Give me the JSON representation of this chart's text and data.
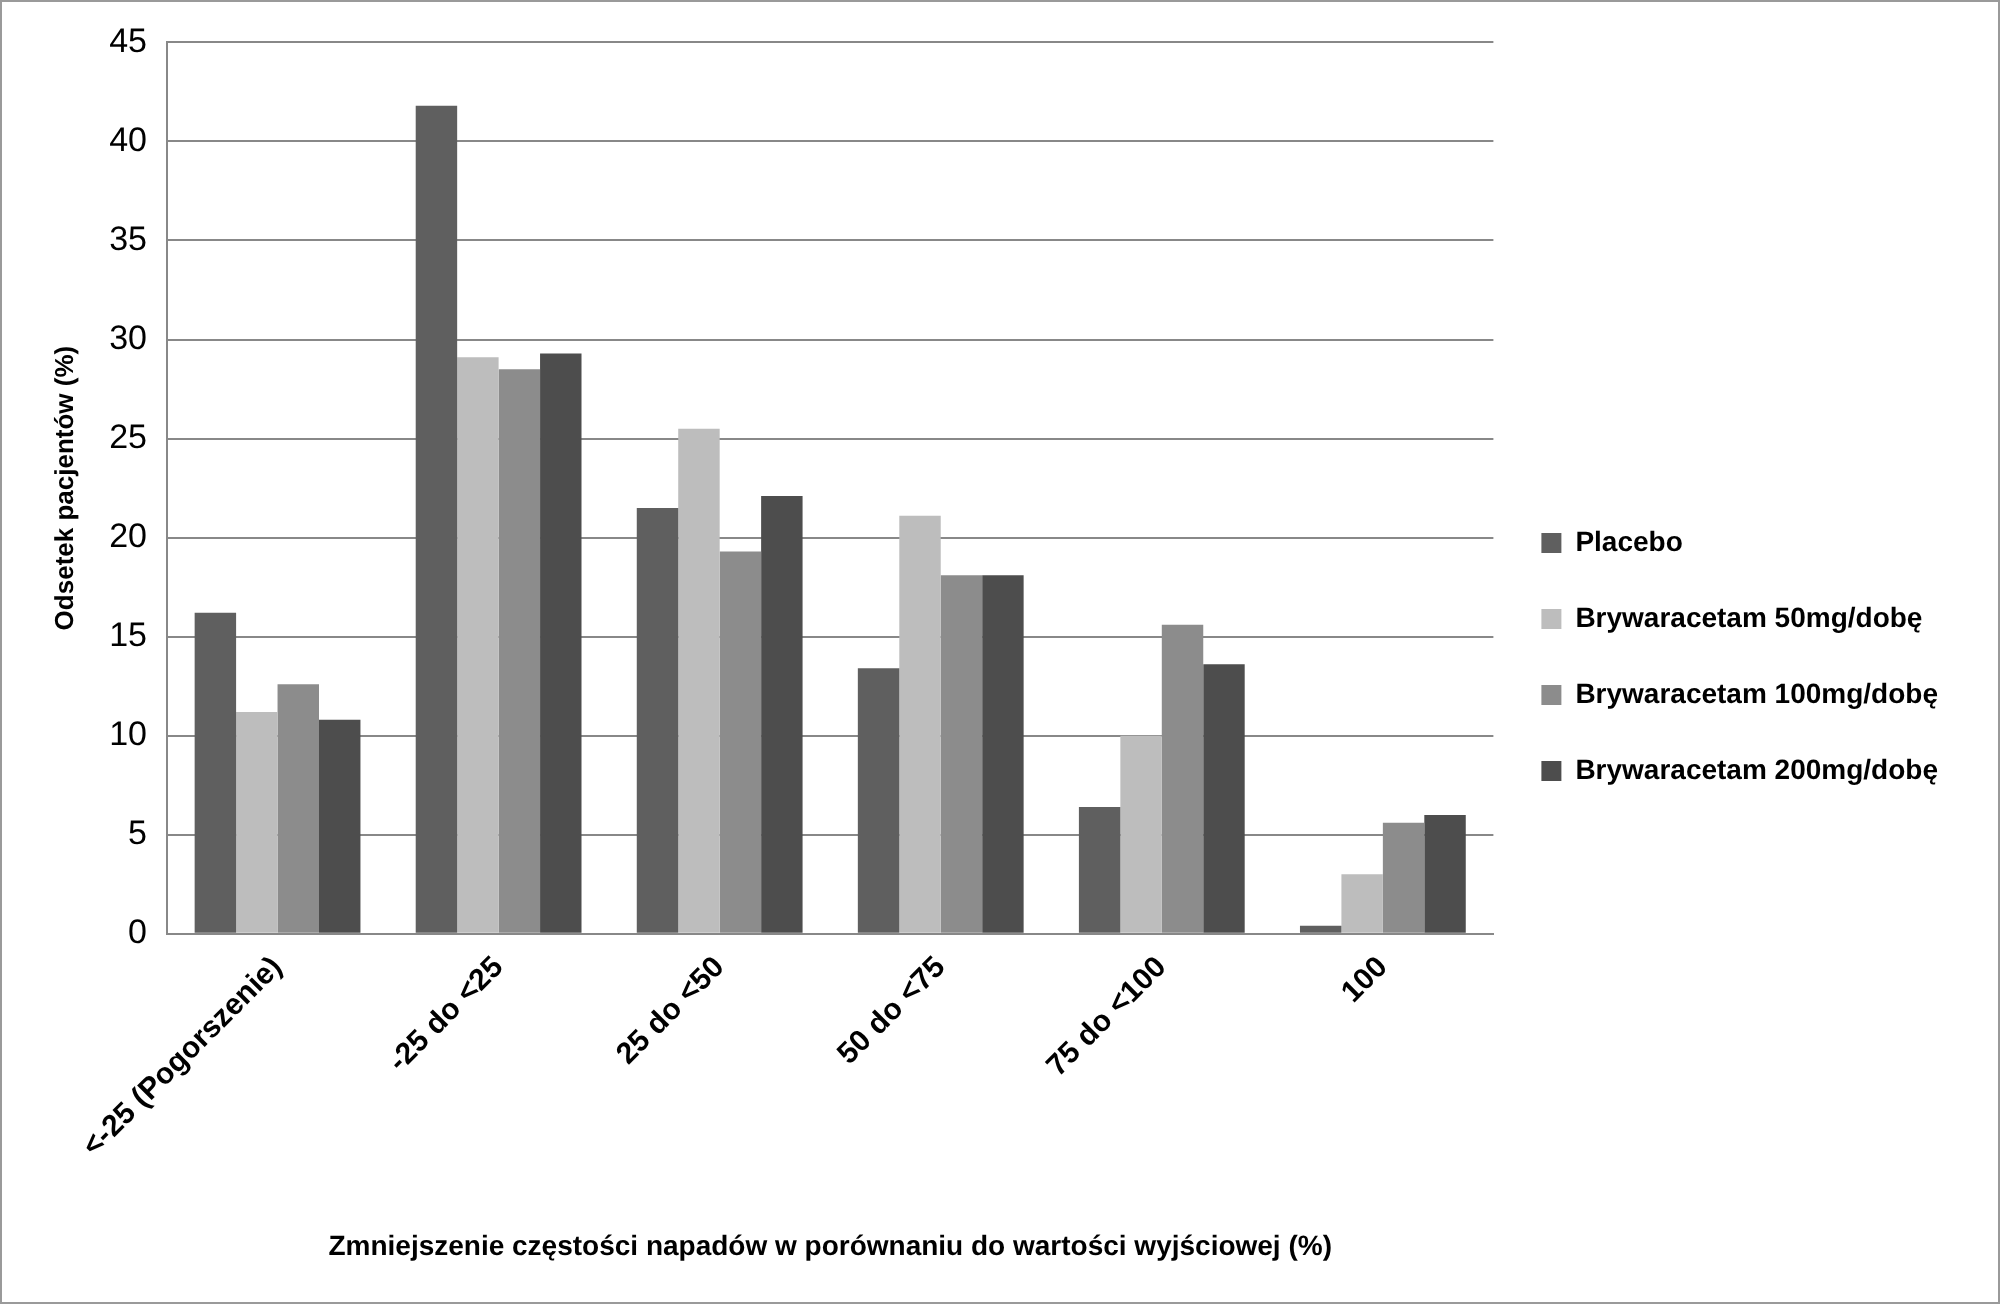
{
  "chart_data": {
    "type": "bar",
    "categories": [
      "<-25 (Pogorszenie)",
      "-25 do <25",
      "25 do <50",
      "50 do <75",
      "75 do <100",
      "100"
    ],
    "series": [
      {
        "name": "Placebo",
        "color": "#5f5f5f",
        "values": [
          16.2,
          41.8,
          21.5,
          13.4,
          6.4,
          0.4
        ]
      },
      {
        "name": "Brywaracetam 50mg/dobę",
        "color": "#bdbdbd",
        "values": [
          11.2,
          29.1,
          25.5,
          21.1,
          10,
          3
        ]
      },
      {
        "name": "Brywaracetam 100mg/dobę",
        "color": "#8c8c8c",
        "values": [
          12.6,
          28.5,
          19.3,
          18.1,
          15.6,
          5.6
        ]
      },
      {
        "name": "Brywaracetam 200mg/dobę",
        "color": "#4d4d4d",
        "values": [
          10.8,
          29.3,
          22.1,
          18.1,
          13.6,
          6
        ]
      }
    ],
    "xlabel": "Zmniejszenie częstości napadów w porównaniu do wartości wyjściowej (%)",
    "ylabel": "Odsetek pacjentów (%)",
    "ylim": [
      0,
      45
    ],
    "yticks": [
      0,
      5,
      10,
      15,
      20,
      25,
      30,
      35,
      40,
      45
    ],
    "grid": "y",
    "legend": "right"
  }
}
